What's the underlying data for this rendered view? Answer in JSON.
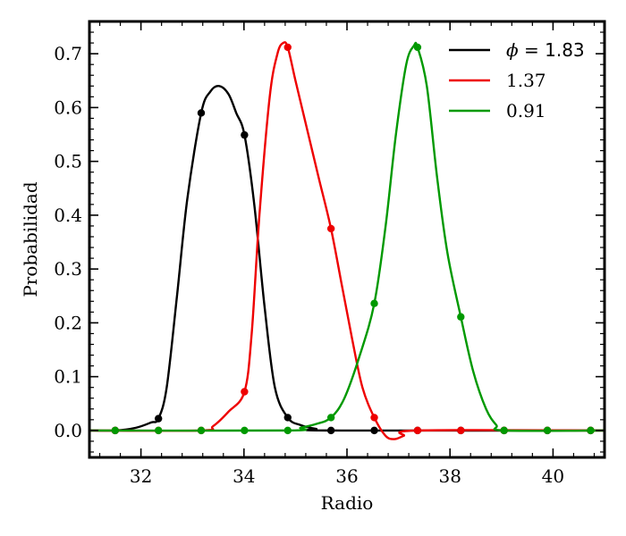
{
  "chart_data": {
    "type": "line",
    "title": "",
    "xlabel": "Radio",
    "ylabel": "Probabilidad",
    "xlim": [
      31.0,
      41.0
    ],
    "ylim": [
      -0.05,
      0.76
    ],
    "xticks": [
      32,
      34,
      36,
      38,
      40
    ],
    "xtick_labels": [
      "32",
      "34",
      "36",
      "38",
      "40"
    ],
    "yticks": [
      0.0,
      0.1,
      0.2,
      0.3,
      0.4,
      0.5,
      0.6,
      0.7
    ],
    "ytick_labels": [
      "0.0",
      "0.1",
      "0.2",
      "0.3",
      "0.4",
      "0.5",
      "0.6",
      "0.7"
    ],
    "legend": {
      "placement": "top-right",
      "prefix": "ϕ = "
    },
    "series": [
      {
        "name": "1.83",
        "color": "#000000",
        "points": [
          [
            31.5,
            0.0
          ],
          [
            32.34,
            0.022
          ],
          [
            33.17,
            0.59
          ],
          [
            34.01,
            0.549
          ],
          [
            34.85,
            0.024
          ],
          [
            35.69,
            0.0
          ],
          [
            36.53,
            0.0
          ],
          [
            37.37,
            0.0
          ],
          [
            38.21,
            0.0
          ],
          [
            39.05,
            0.0
          ],
          [
            39.89,
            0.0
          ],
          [
            40.73,
            0.0
          ]
        ],
        "curve": [
          [
            31.0,
            0.0
          ],
          [
            31.5,
            0.0
          ],
          [
            31.9,
            0.005
          ],
          [
            32.2,
            0.015
          ],
          [
            32.34,
            0.022
          ],
          [
            32.5,
            0.08
          ],
          [
            32.7,
            0.25
          ],
          [
            32.9,
            0.43
          ],
          [
            33.17,
            0.59
          ],
          [
            33.35,
            0.63
          ],
          [
            33.52,
            0.64
          ],
          [
            33.7,
            0.625
          ],
          [
            33.85,
            0.59
          ],
          [
            34.01,
            0.549
          ],
          [
            34.2,
            0.42
          ],
          [
            34.4,
            0.23
          ],
          [
            34.6,
            0.08
          ],
          [
            34.85,
            0.024
          ],
          [
            35.1,
            0.01
          ],
          [
            35.4,
            0.003
          ],
          [
            35.69,
            0.0
          ],
          [
            41.0,
            0.0
          ]
        ]
      },
      {
        "name": "1.37",
        "color": "#ee0000",
        "points": [
          [
            31.5,
            0.0
          ],
          [
            32.34,
            0.0
          ],
          [
            33.17,
            0.0
          ],
          [
            34.01,
            0.072
          ],
          [
            34.85,
            0.712
          ],
          [
            35.69,
            0.375
          ],
          [
            36.53,
            0.024
          ],
          [
            37.37,
            0.0
          ],
          [
            38.21,
            0.0
          ],
          [
            39.05,
            0.0
          ],
          [
            39.89,
            0.0
          ],
          [
            40.73,
            0.0
          ]
        ],
        "curve": [
          [
            31.0,
            0.0
          ],
          [
            33.17,
            0.0
          ],
          [
            33.4,
            0.008
          ],
          [
            33.7,
            0.035
          ],
          [
            34.01,
            0.072
          ],
          [
            34.15,
            0.18
          ],
          [
            34.3,
            0.4
          ],
          [
            34.5,
            0.62
          ],
          [
            34.65,
            0.7
          ],
          [
            34.76,
            0.72
          ],
          [
            34.85,
            0.712
          ],
          [
            35.0,
            0.65
          ],
          [
            35.2,
            0.57
          ],
          [
            35.45,
            0.47
          ],
          [
            35.69,
            0.375
          ],
          [
            35.9,
            0.27
          ],
          [
            36.1,
            0.17
          ],
          [
            36.3,
            0.08
          ],
          [
            36.53,
            0.024
          ],
          [
            36.75,
            -0.01
          ],
          [
            36.92,
            -0.016
          ],
          [
            37.1,
            -0.01
          ],
          [
            37.37,
            0.0
          ],
          [
            41.0,
            0.0
          ]
        ]
      },
      {
        "name": "0.91",
        "color": "#009900",
        "points": [
          [
            31.5,
            0.0
          ],
          [
            32.34,
            0.0
          ],
          [
            33.17,
            0.0
          ],
          [
            34.01,
            0.0
          ],
          [
            34.85,
            0.0
          ],
          [
            35.69,
            0.024
          ],
          [
            36.53,
            0.236
          ],
          [
            37.37,
            0.712
          ],
          [
            38.21,
            0.211
          ],
          [
            39.05,
            0.0
          ],
          [
            39.89,
            0.0
          ],
          [
            40.73,
            0.0
          ]
        ],
        "curve": [
          [
            31.0,
            0.0
          ],
          [
            34.85,
            0.0
          ],
          [
            35.1,
            0.005
          ],
          [
            35.4,
            0.012
          ],
          [
            35.69,
            0.024
          ],
          [
            35.95,
            0.06
          ],
          [
            36.25,
            0.14
          ],
          [
            36.53,
            0.236
          ],
          [
            36.75,
            0.38
          ],
          [
            36.95,
            0.55
          ],
          [
            37.15,
            0.68
          ],
          [
            37.3,
            0.715
          ],
          [
            37.37,
            0.712
          ],
          [
            37.55,
            0.64
          ],
          [
            37.75,
            0.47
          ],
          [
            37.95,
            0.33
          ],
          [
            38.21,
            0.211
          ],
          [
            38.45,
            0.11
          ],
          [
            38.7,
            0.04
          ],
          [
            38.9,
            0.01
          ],
          [
            39.05,
            0.0
          ],
          [
            41.0,
            0.0
          ]
        ]
      }
    ]
  }
}
